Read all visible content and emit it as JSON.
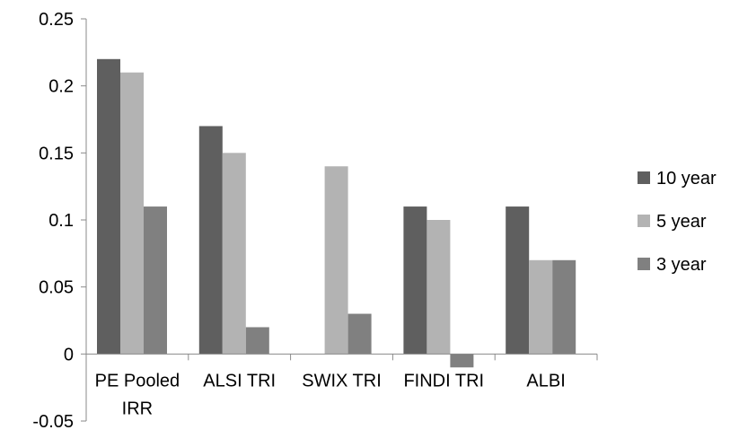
{
  "chart_data": {
    "type": "bar",
    "title": "",
    "xlabel": "",
    "ylabel": "",
    "categories": [
      [
        "PE Pooled",
        "IRR"
      ],
      [
        "ALSI TRI"
      ],
      [
        "SWIX TRI"
      ],
      [
        "FINDI TRI"
      ],
      [
        "ALBI"
      ]
    ],
    "series": [
      {
        "name": "10 year",
        "color": "#5f5f5f",
        "values": [
          0.22,
          0.17,
          0,
          0.11,
          0.11
        ]
      },
      {
        "name": "5 year",
        "color": "#b3b3b3",
        "values": [
          0.21,
          0.15,
          0.14,
          0.1,
          0.07
        ]
      },
      {
        "name": "3 year",
        "color": "#808080",
        "values": [
          0.11,
          0.02,
          0.03,
          -0.01,
          0.07
        ]
      }
    ],
    "ylim": [
      -0.05,
      0.25
    ],
    "yticks": [
      {
        "value": 0.25,
        "label": "0.25"
      },
      {
        "value": 0.2,
        "label": "0.2"
      },
      {
        "value": 0.15,
        "label": "0.15"
      },
      {
        "value": 0.1,
        "label": "0.1"
      },
      {
        "value": 0.05,
        "label": "0.05"
      },
      {
        "value": 0,
        "label": "0"
      },
      {
        "value": -0.05,
        "label": "-0.05"
      }
    ],
    "grid": false,
    "legend_position": "right"
  }
}
